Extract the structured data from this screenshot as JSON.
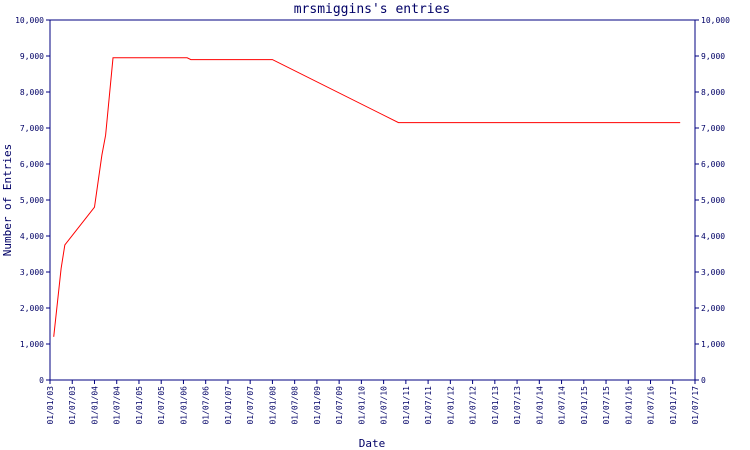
{
  "chart_data": {
    "type": "line",
    "title": "mrsmiggins's entries",
    "x_label": "Date",
    "y_label": "Number of Entries",
    "x": [
      "2003-02",
      "2003-04",
      "2003-05",
      "2004-01",
      "2004-03",
      "2004-04",
      "2004-06",
      "2006-02",
      "2006-03",
      "2008-01",
      "2010-11",
      "2017-03"
    ],
    "series": [
      {
        "name": "entries",
        "color": "#ff0000",
        "values": [
          1200,
          3100,
          3750,
          4800,
          6250,
          6800,
          8950,
          8950,
          8900,
          8900,
          7150,
          7150
        ]
      }
    ],
    "xlim": [
      "2003-01",
      "2017-07"
    ],
    "xticks": [
      {
        "value": "2003-01",
        "label": "01/01/03"
      },
      {
        "value": "2003-07",
        "label": "01/07/03"
      },
      {
        "value": "2004-01",
        "label": "01/01/04"
      },
      {
        "value": "2004-07",
        "label": "01/07/04"
      },
      {
        "value": "2005-01",
        "label": "01/01/05"
      },
      {
        "value": "2005-07",
        "label": "01/07/05"
      },
      {
        "value": "2006-01",
        "label": "01/01/06"
      },
      {
        "value": "2006-07",
        "label": "01/07/06"
      },
      {
        "value": "2007-01",
        "label": "01/01/07"
      },
      {
        "value": "2007-07",
        "label": "01/07/07"
      },
      {
        "value": "2008-01",
        "label": "01/01/08"
      },
      {
        "value": "2008-07",
        "label": "01/07/08"
      },
      {
        "value": "2009-01",
        "label": "01/01/09"
      },
      {
        "value": "2009-07",
        "label": "01/07/09"
      },
      {
        "value": "2010-01",
        "label": "01/01/10"
      },
      {
        "value": "2010-07",
        "label": "01/07/10"
      },
      {
        "value": "2011-01",
        "label": "01/01/11"
      },
      {
        "value": "2011-07",
        "label": "01/07/11"
      },
      {
        "value": "2012-01",
        "label": "01/01/12"
      },
      {
        "value": "2012-07",
        "label": "01/07/12"
      },
      {
        "value": "2013-01",
        "label": "01/01/13"
      },
      {
        "value": "2013-07",
        "label": "01/07/13"
      },
      {
        "value": "2014-01",
        "label": "01/01/14"
      },
      {
        "value": "2014-07",
        "label": "01/07/14"
      },
      {
        "value": "2015-01",
        "label": "01/01/15"
      },
      {
        "value": "2015-07",
        "label": "01/07/15"
      },
      {
        "value": "2016-01",
        "label": "01/01/16"
      },
      {
        "value": "2016-07",
        "label": "01/07/16"
      },
      {
        "value": "2017-01",
        "label": "01/01/17"
      },
      {
        "value": "2017-07",
        "label": "01/07/17"
      }
    ],
    "ylim": [
      0,
      10000
    ],
    "yticks": [
      0,
      {
        "value": 1000,
        "label": "1,000"
      },
      {
        "value": 2000,
        "label": "2,000"
      },
      {
        "value": 3000,
        "label": "3,000"
      },
      {
        "value": 4000,
        "label": "4,000"
      },
      {
        "value": 5000,
        "label": "5,000"
      },
      {
        "value": 6000,
        "label": "6,000"
      },
      {
        "value": 7000,
        "label": "7,000"
      },
      {
        "value": 8000,
        "label": "8,000"
      },
      {
        "value": 9000,
        "label": "9,000"
      },
      {
        "value": 10000,
        "label": "10,000"
      }
    ],
    "axis_color": "#000080"
  }
}
